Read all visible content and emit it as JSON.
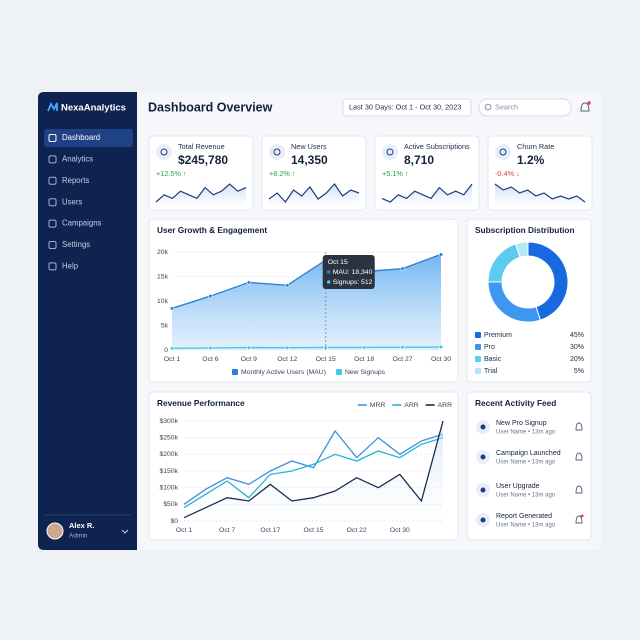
{
  "sidebar": {
    "brand": "NexaAnalytics",
    "nav": [
      "Dashboard",
      "Analytics",
      "Reports",
      "Users",
      "Campaigns",
      "Settings",
      "Help"
    ],
    "user": {
      "name": "Alex R.",
      "role": "Admin"
    }
  },
  "header": {
    "title": "Dashboard Overview",
    "date_range": "Last 30 Days: Oct 1 - Oct 30, 2023",
    "search": "Search"
  },
  "kpis": [
    {
      "label": "Total Revenue",
      "value": "$245,780",
      "change": "+12.5% ↑",
      "spark": [
        3,
        5,
        4,
        6,
        5,
        4,
        7,
        5,
        6,
        8,
        6,
        7
      ]
    },
    {
      "label": "New Users",
      "value": "14,350",
      "change": "+8.2% ↑",
      "spark": [
        4,
        6,
        3,
        7,
        5,
        8,
        4,
        6,
        9,
        5,
        7,
        6
      ]
    },
    {
      "label": "Active Subscriptions",
      "value": "8,710",
      "change": "+5.1% ↑",
      "spark": [
        5,
        4,
        6,
        5,
        7,
        6,
        5,
        8,
        6,
        7,
        6,
        9
      ]
    },
    {
      "label": "Churn Rate",
      "value": "1.2%",
      "change": "-0.4% ↓",
      "spark": [
        8,
        6,
        7,
        5,
        6,
        4,
        5,
        3,
        4,
        3,
        4,
        2
      ]
    }
  ],
  "chart_data": [
    {
      "type": "area",
      "title": "User Growth & Engagement",
      "categories": [
        "Oct 1",
        "Oct 6",
        "Oct 9",
        "Oct 12",
        "Oct 15",
        "Oct 18",
        "Oct 27",
        "Oct 30"
      ],
      "series": [
        {
          "name": "Monthly Active Users (MAU)",
          "color": "#2f7fd8",
          "values": [
            8500,
            11000,
            13800,
            13200,
            18340,
            16000,
            16600,
            19500
          ]
        },
        {
          "name": "New Signups",
          "color": "#45c8e8",
          "values": [
            350,
            420,
            480,
            460,
            512,
            530,
            560,
            600
          ]
        }
      ],
      "ylim": [
        0,
        20000
      ],
      "yticks": [
        0,
        {
          "value": 5000,
          "label": "5k"
        },
        {
          "value": 10000,
          "label": "10k"
        },
        {
          "value": 15000,
          "label": "15k"
        },
        {
          "value": 20000,
          "label": "20k"
        }
      ],
      "grid": true,
      "tooltip": {
        "title": "Oct 15",
        "lines": [
          "MAU: 18,340",
          "Signups: 512"
        ]
      }
    },
    {
      "type": "pie",
      "title": "Subscription Distribution",
      "categories": [
        "Premium",
        "Pro",
        "Basic",
        "Trial"
      ],
      "values": [
        45,
        30,
        20,
        5
      ],
      "value_labels": [
        "45%",
        "30%",
        "20%",
        "5%"
      ],
      "colors": [
        "#1769e0",
        "#3d96f0",
        "#5ccbef",
        "#b3e8f7"
      ]
    },
    {
      "type": "line",
      "title": "Revenue Performance",
      "categories": [
        "Oct 1",
        null,
        "Oct 7",
        null,
        "Oct 17",
        null,
        "Oct 15",
        null,
        "Oct 22",
        null,
        "Oct 30",
        null,
        null
      ],
      "series": [
        {
          "name": "MRR",
          "color": "#3f8fe0",
          "values": [
            50000,
            95000,
            130000,
            110000,
            150000,
            180000,
            160000,
            270000,
            190000,
            250000,
            200000,
            240000,
            260000
          ]
        },
        {
          "name": "ARR",
          "color": "#27b3d3",
          "values": [
            40000,
            80000,
            120000,
            70000,
            140000,
            150000,
            170000,
            200000,
            180000,
            210000,
            190000,
            230000,
            250000
          ]
        },
        {
          "name": "ARR",
          "color": "#1b2a55",
          "values": [
            10000,
            40000,
            70000,
            60000,
            110000,
            60000,
            70000,
            90000,
            130000,
            100000,
            140000,
            60000,
            300000
          ]
        }
      ],
      "ylim": [
        0,
        300000
      ],
      "yticks": [
        {
          "value": 0,
          "label": "$0"
        },
        {
          "value": 50000,
          "label": "$50k"
        },
        {
          "value": 100000,
          "label": "$100k"
        },
        {
          "value": 150000,
          "label": "$150k"
        },
        {
          "value": 200000,
          "label": "$200k"
        },
        {
          "value": 250000,
          "label": "$250k"
        },
        {
          "value": 300000,
          "label": "$300k"
        }
      ],
      "grid": true
    }
  ],
  "activity": {
    "title": "Recent Activity Feed",
    "items": [
      {
        "title": "New Pro Signup",
        "meta": "User Name • 13m ago"
      },
      {
        "title": "Campaign Launched",
        "meta": "User Name • 13m ago"
      },
      {
        "title": "User Upgrade",
        "meta": "User Name • 13m ago"
      },
      {
        "title": "Report Generated",
        "meta": "User Name • 13m ago"
      }
    ]
  }
}
